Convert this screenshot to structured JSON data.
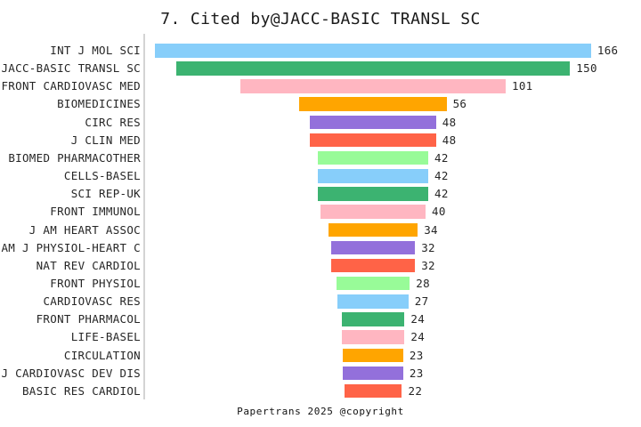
{
  "title": "7. Cited by@JACC-BASIC TRANSL SC",
  "footer": "Papertrans 2025 @copyright",
  "colors": {
    "background": "#ffffff",
    "axis_line": "#d4d4d4",
    "text": "#262626"
  },
  "chart_data": {
    "type": "bar",
    "orientation": "horizontal",
    "variant": "centered-funnel",
    "title": "7. Cited by@JACC-BASIC TRANSL SC",
    "xlabel": "",
    "ylabel": "",
    "grid": false,
    "legend": false,
    "max_value": 166,
    "palette": [
      "#87CEFA",
      "#3CB371",
      "#FFB6C1",
      "#FFA500",
      "#9370DB",
      "#FF6347",
      "#98FB98"
    ],
    "categories": [
      "INT J MOL SCI",
      "JACC-BASIC TRANSL SC",
      "FRONT CARDIOVASC MED",
      "BIOMEDICINES",
      "CIRC RES",
      "J CLIN MED",
      "BIOMED PHARMACOTHER",
      "CELLS-BASEL",
      "SCI REP-UK",
      "FRONT IMMUNOL",
      "J AM HEART ASSOC",
      "AM J PHYSIOL-HEART C",
      "NAT REV CARDIOL",
      "FRONT PHYSIOL",
      "CARDIOVASC RES",
      "FRONT PHARMACOL",
      "LIFE-BASEL",
      "CIRCULATION",
      "J CARDIOVASC DEV DIS",
      "BASIC RES CARDIOL"
    ],
    "values": [
      166,
      150,
      101,
      56,
      48,
      48,
      42,
      42,
      42,
      40,
      34,
      32,
      32,
      28,
      27,
      24,
      24,
      23,
      23,
      22
    ],
    "bar_colors": [
      "#87CEFA",
      "#3CB371",
      "#FFB6C1",
      "#FFA500",
      "#9370DB",
      "#FF6347",
      "#98FB98",
      "#87CEFA",
      "#3CB371",
      "#FFB6C1",
      "#FFA500",
      "#9370DB",
      "#FF6347",
      "#98FB98",
      "#87CEFA",
      "#3CB371",
      "#FFB6C1",
      "#FFA500",
      "#9370DB",
      "#FF6347"
    ]
  }
}
